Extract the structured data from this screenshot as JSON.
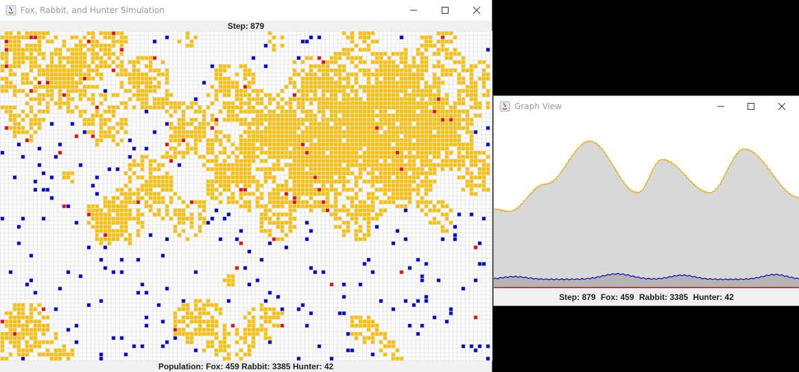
{
  "simulation_window": {
    "title": "Fox, Rabbit, and Hunter Simulation",
    "step_label": "Step: 879",
    "population_label": "Population: Fox: 459 Rabbit: 3385 Hunter: 42"
  },
  "graph_window": {
    "title": "Graph View",
    "status": {
      "step": "Step:  879",
      "fox": "Fox: 459",
      "rabbit": "Rabbit: 3385",
      "hunter": "Hunter: 42"
    }
  },
  "window_controls": [
    "minimize-icon",
    "maximize-icon",
    "close-icon"
  ],
  "colors": {
    "rabbit": "#f8c000",
    "fox": "#0000cc",
    "hunter": "#e01010",
    "grid_line": "#e4e4e4",
    "graph_fill": "#d8d8d8",
    "graph_rabbit_line": "#e8a800",
    "graph_fox_line": "#0000cc",
    "graph_hunter_line": "#cc0000"
  }
}
